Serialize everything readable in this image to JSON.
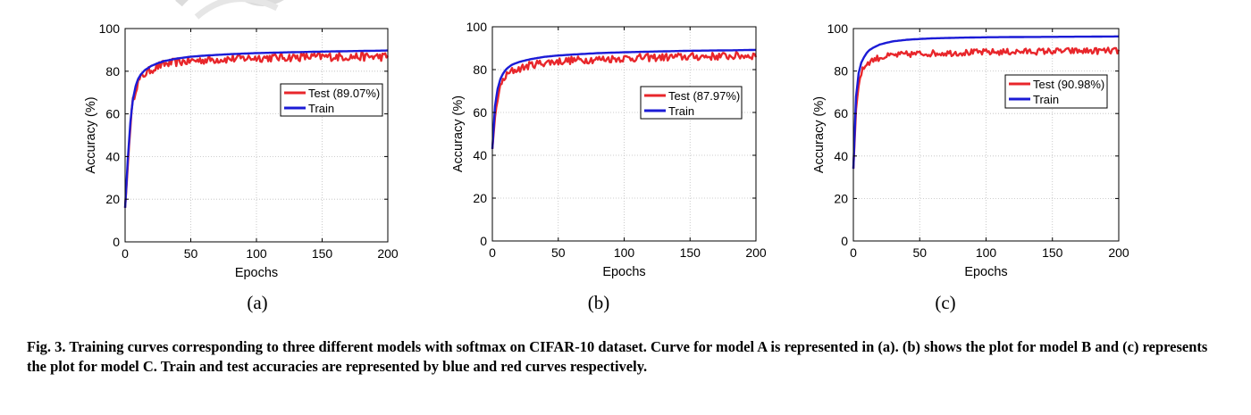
{
  "chart_data": [
    {
      "type": "line",
      "panel_label": "(a)",
      "xlabel": "Epochs",
      "ylabel": "Accuracy (%)",
      "xlim": [
        0,
        200
      ],
      "ylim": [
        0,
        100
      ],
      "xticks": [
        0,
        50,
        100,
        150,
        200
      ],
      "yticks": [
        0,
        20,
        40,
        60,
        80,
        100
      ],
      "grid": true,
      "legend_position": "center-right",
      "series": [
        {
          "name": "Test (89.07%)",
          "color": "#e8262b",
          "points": [
            [
              0,
              16
            ],
            [
              2,
              35
            ],
            [
              4,
              55
            ],
            [
              6,
              66
            ],
            [
              8,
              72
            ],
            [
              10,
              75
            ],
            [
              12,
              77
            ],
            [
              15,
              79
            ],
            [
              20,
              81
            ],
            [
              25,
              82.5
            ],
            [
              30,
              83.5
            ],
            [
              40,
              84.5
            ],
            [
              50,
              85
            ],
            [
              60,
              85.5
            ],
            [
              80,
              86
            ],
            [
              100,
              86.5
            ],
            [
              120,
              86.7
            ],
            [
              150,
              87
            ],
            [
              180,
              87
            ],
            [
              200,
              87
            ]
          ],
          "noise": 2.0
        },
        {
          "name": "Train",
          "color": "#1b1bd6",
          "points": [
            [
              0,
              16
            ],
            [
              2,
              38
            ],
            [
              4,
              56
            ],
            [
              6,
              67
            ],
            [
              8,
              73
            ],
            [
              10,
              76.5
            ],
            [
              12,
              78.5
            ],
            [
              15,
              80.5
            ],
            [
              20,
              82.5
            ],
            [
              25,
              83.8
            ],
            [
              30,
              84.8
            ],
            [
              40,
              86
            ],
            [
              50,
              86.8
            ],
            [
              60,
              87.3
            ],
            [
              80,
              88
            ],
            [
              100,
              88.5
            ],
            [
              120,
              88.8
            ],
            [
              150,
              89.2
            ],
            [
              180,
              89.5
            ],
            [
              200,
              89.7
            ]
          ],
          "noise": 0
        }
      ]
    },
    {
      "type": "line",
      "panel_label": "(b)",
      "xlabel": "Epochs",
      "ylabel": "Accuracy (%)",
      "xlim": [
        0,
        200
      ],
      "ylim": [
        0,
        100
      ],
      "xticks": [
        0,
        50,
        100,
        150,
        200
      ],
      "yticks": [
        0,
        20,
        40,
        60,
        80,
        100
      ],
      "grid": true,
      "legend_position": "center-right",
      "series": [
        {
          "name": "Test (87.97%)",
          "color": "#e8262b",
          "points": [
            [
              0,
              43
            ],
            [
              2,
              58
            ],
            [
              4,
              67
            ],
            [
              6,
              72
            ],
            [
              8,
              75
            ],
            [
              10,
              77
            ],
            [
              12,
              78
            ],
            [
              15,
              79.5
            ],
            [
              20,
              80.5
            ],
            [
              25,
              81.5
            ],
            [
              30,
              82.5
            ],
            [
              40,
              83.5
            ],
            [
              50,
              84
            ],
            [
              60,
              84.5
            ],
            [
              80,
              85
            ],
            [
              100,
              85.5
            ],
            [
              120,
              85.8
            ],
            [
              150,
              86.2
            ],
            [
              180,
              86.5
            ],
            [
              200,
              86.8
            ]
          ],
          "noise": 1.8
        },
        {
          "name": "Train",
          "color": "#1b1bd6",
          "points": [
            [
              0,
              43
            ],
            [
              2,
              63
            ],
            [
              4,
              71
            ],
            [
              6,
              75.5
            ],
            [
              8,
              78
            ],
            [
              10,
              79.8
            ],
            [
              12,
              81
            ],
            [
              15,
              82.3
            ],
            [
              20,
              83.5
            ],
            [
              25,
              84.3
            ],
            [
              30,
              85
            ],
            [
              40,
              86
            ],
            [
              50,
              86.6
            ],
            [
              60,
              87
            ],
            [
              80,
              87.7
            ],
            [
              100,
              88.1
            ],
            [
              120,
              88.4
            ],
            [
              150,
              88.8
            ],
            [
              180,
              89
            ],
            [
              200,
              89.2
            ]
          ],
          "noise": 0
        }
      ]
    },
    {
      "type": "line",
      "panel_label": "(c)",
      "xlabel": "Epochs",
      "ylabel": "Accuracy (%)",
      "xlim": [
        0,
        200
      ],
      "ylim": [
        0,
        100
      ],
      "xticks": [
        0,
        50,
        100,
        150,
        200
      ],
      "yticks": [
        0,
        20,
        40,
        60,
        80,
        100
      ],
      "grid": true,
      "legend_position": "top-right",
      "series": [
        {
          "name": "Test (90.98%)",
          "color": "#e8262b",
          "points": [
            [
              0,
              34
            ],
            [
              2,
              62
            ],
            [
              4,
              74
            ],
            [
              6,
              79
            ],
            [
              8,
              82
            ],
            [
              10,
              83.5
            ],
            [
              12,
              84.5
            ],
            [
              15,
              85.5
            ],
            [
              20,
              86.5
            ],
            [
              25,
              87
            ],
            [
              30,
              87.5
            ],
            [
              40,
              88
            ],
            [
              50,
              88.3
            ],
            [
              60,
              88.5
            ],
            [
              80,
              88.8
            ],
            [
              100,
              89
            ],
            [
              120,
              89.2
            ],
            [
              150,
              89.5
            ],
            [
              180,
              89.6
            ],
            [
              200,
              89.7
            ]
          ],
          "noise": 1.5
        },
        {
          "name": "Train",
          "color": "#1b1bd6",
          "points": [
            [
              0,
              34
            ],
            [
              2,
              68
            ],
            [
              4,
              79
            ],
            [
              6,
              84
            ],
            [
              8,
              86.5
            ],
            [
              10,
              88.5
            ],
            [
              12,
              89.8
            ],
            [
              15,
              91
            ],
            [
              20,
              92.5
            ],
            [
              25,
              93.3
            ],
            [
              30,
              94
            ],
            [
              40,
              94.7
            ],
            [
              50,
              95.1
            ],
            [
              60,
              95.4
            ],
            [
              80,
              95.7
            ],
            [
              100,
              95.9
            ],
            [
              120,
              96
            ],
            [
              150,
              96.1
            ],
            [
              180,
              96.2
            ],
            [
              200,
              96.3
            ]
          ],
          "noise": 0
        }
      ]
    }
  ],
  "caption": "Fig. 3. Training curves corresponding to three different models with softmax on CIFAR-10 dataset. Curve for model A is represented in (a). (b) shows the plot for model B and (c) represents the plot for model C. Train and test accuracies are represented by blue and red curves respectively."
}
